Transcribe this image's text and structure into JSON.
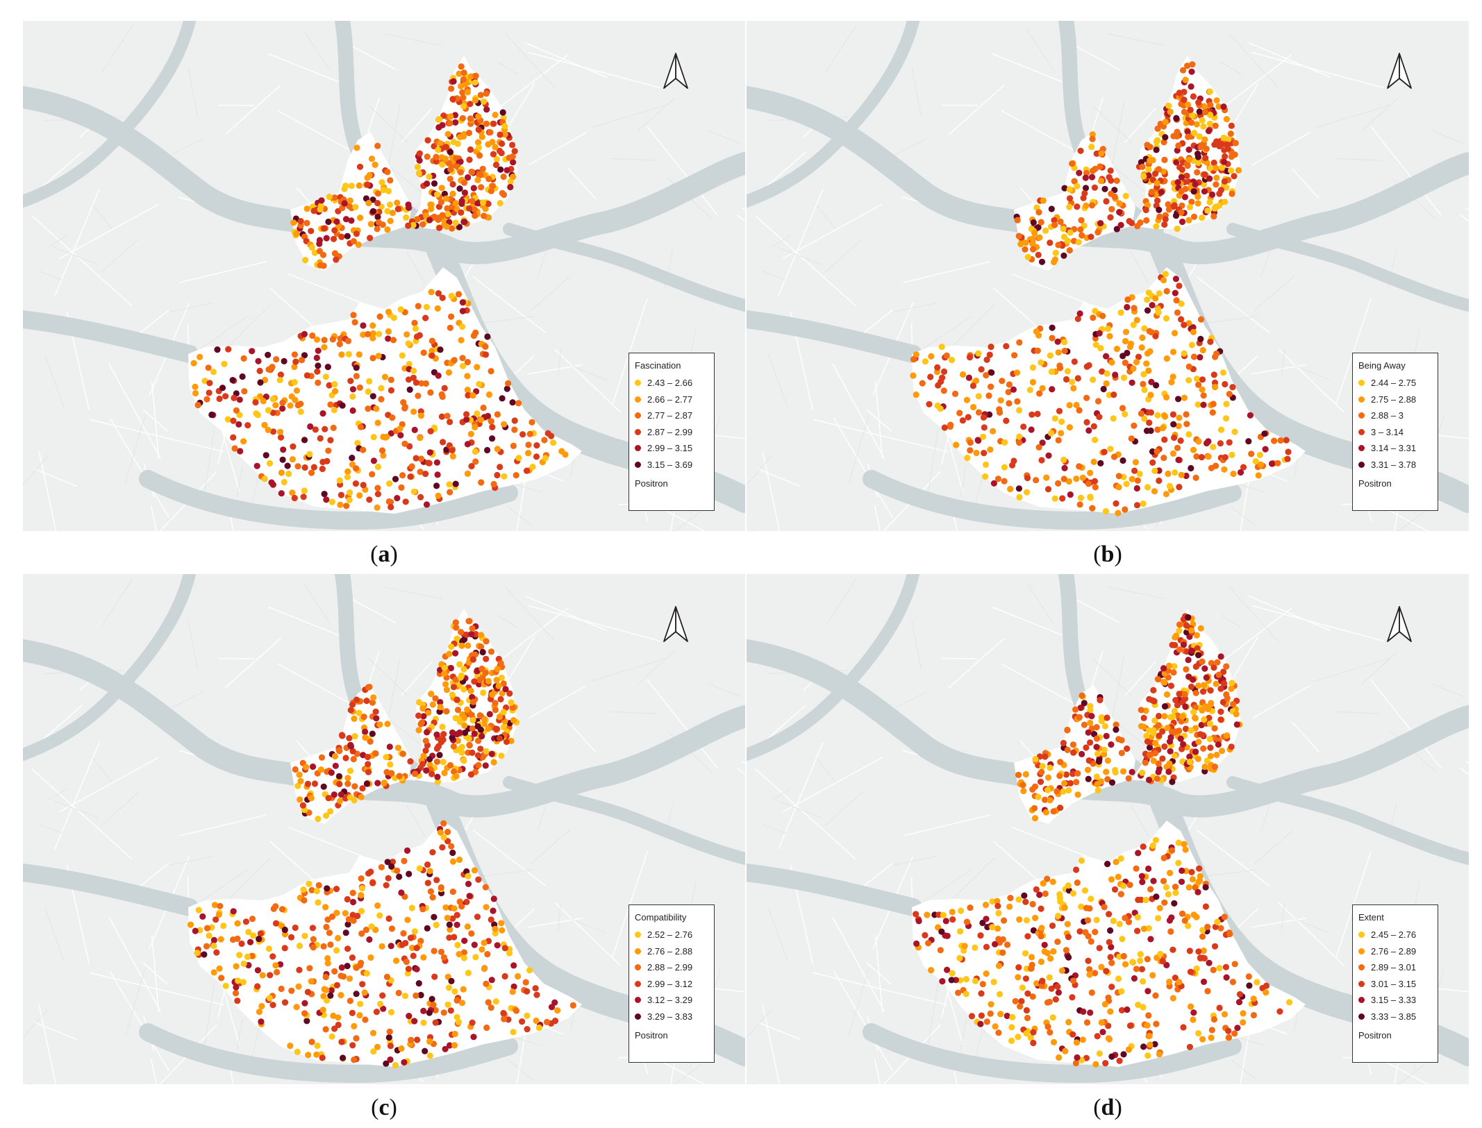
{
  "panels": [
    {
      "caption_open": "(",
      "caption_letter": "a",
      "caption_close": ")",
      "legend": {
        "title": "Fascination",
        "classes": [
          "2.43 – 2.66",
          "2.66 – 2.77",
          "2.77 – 2.87",
          "2.87 – 2.99",
          "2.99 – 3.15",
          "3.15 – 3.69"
        ],
        "basemap": "Positron"
      },
      "seed": 11
    },
    {
      "caption_open": "(",
      "caption_letter": "b",
      "caption_close": ")",
      "legend": {
        "title": "Being Away",
        "classes": [
          "2.44 – 2.75",
          "2.75 – 2.88",
          "2.88 – 3",
          "3 – 3.14",
          "3.14 – 3.31",
          "3.31 – 3.78"
        ],
        "basemap": "Positron"
      },
      "seed": 23
    },
    {
      "caption_open": "(",
      "caption_letter": "c",
      "caption_close": ")",
      "legend": {
        "title": "Compatibility",
        "classes": [
          "2.52 – 2.76",
          "2.76 – 2.88",
          "2.88 – 2.99",
          "2.99 – 3.12",
          "3.12 – 3.29",
          "3.29 – 3.83"
        ],
        "basemap": "Positron"
      },
      "seed": 37
    },
    {
      "caption_open": "(",
      "caption_letter": "d",
      "caption_close": ")",
      "legend": {
        "title": "Extent",
        "classes": [
          "2.45 – 2.76",
          "2.76 – 2.89",
          "2.89 – 3.01",
          "3.01 – 3.15",
          "3.15 – 3.33",
          "3.33 – 3.85"
        ],
        "basemap": "Positron"
      },
      "seed": 53
    }
  ],
  "class_colors": [
    "#ffc61a",
    "#ff9a0a",
    "#f26a12",
    "#d93a1c",
    "#a8142a",
    "#5e0824"
  ],
  "map_colors": {
    "land": "#eeefef",
    "water": "#cbd4d6",
    "study_area": "#ffffff"
  },
  "north_arrow_icon": "north-arrow-icon"
}
